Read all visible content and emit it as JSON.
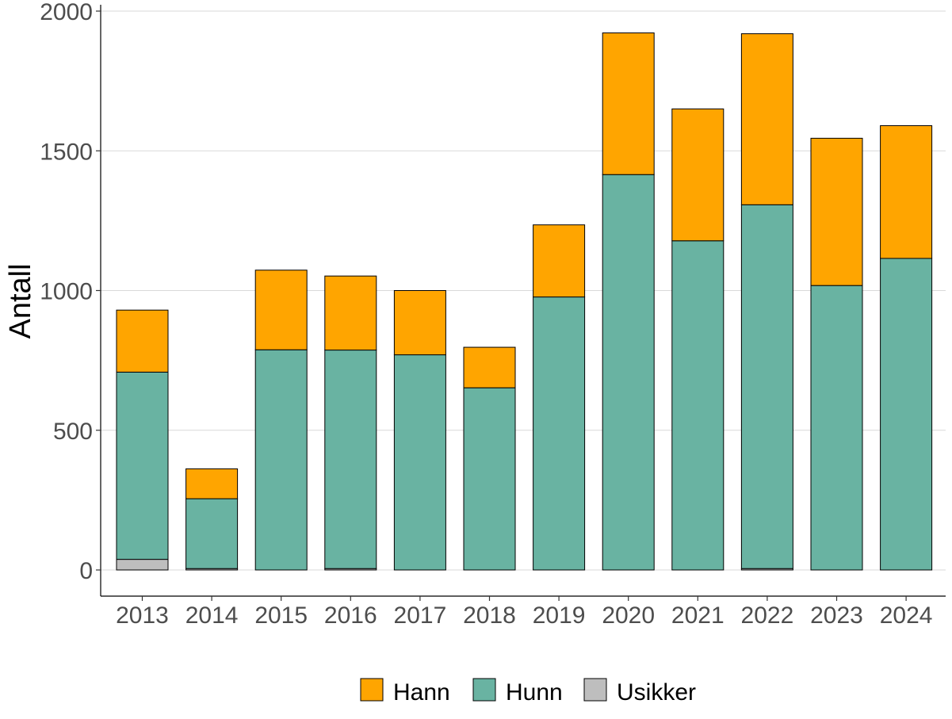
{
  "chart_data": {
    "type": "bar",
    "stacked": true,
    "title": "",
    "xlabel": "",
    "ylabel": "Antall",
    "ylim": [
      -90,
      2020
    ],
    "yticks": [
      0,
      500,
      1000,
      1500,
      2000
    ],
    "grid": "horizontal",
    "legend_position": "bottom",
    "categories": [
      "2013",
      "2014",
      "2015",
      "2016",
      "2017",
      "2018",
      "2019",
      "2020",
      "2021",
      "2022",
      "2023",
      "2024"
    ],
    "series": [
      {
        "name": "Usikker",
        "color": "#bebebe",
        "values": [
          38,
          5,
          0,
          5,
          0,
          0,
          0,
          0,
          0,
          5,
          0,
          0
        ]
      },
      {
        "name": "Hunn",
        "color": "#69b3a2",
        "values": [
          670,
          250,
          788,
          782,
          770,
          652,
          977,
          1415,
          1178,
          1302,
          1018,
          1115
        ]
      },
      {
        "name": "Hann",
        "color": "#ffa500",
        "values": [
          222,
          107,
          285,
          265,
          230,
          145,
          258,
          507,
          472,
          612,
          527,
          475
        ]
      }
    ],
    "legend_order": [
      "Hann",
      "Hunn",
      "Usikker"
    ]
  }
}
